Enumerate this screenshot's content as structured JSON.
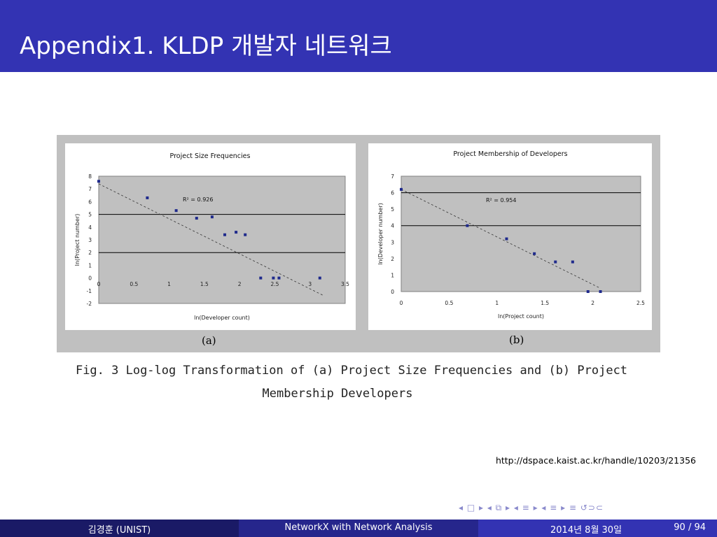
{
  "slide": {
    "title": "Appendix1. KLDP 개발자 네트워크",
    "caption_line1": "Fig. 3 Log-log Transformation of (a) Project Size Frequencies and (b) Project",
    "caption_line2": "Membership Developers",
    "url": "http://dspace.kaist.ac.kr/handle/10203/21356",
    "nav_symbols": "◂ □ ▸  ◂ ⧉ ▸  ◂ ≡ ▸  ◂ ≡ ▸   ≡   ↺⊃⊂"
  },
  "footer": {
    "author": "김경훈 (UNIST)",
    "talk": "NetworkX with Network Analysis",
    "date": "2014년 8월 30일",
    "page": "90 / 94"
  },
  "colors": {
    "title_bar": "#3333b3",
    "plot_bg": "#c0c0c0",
    "marker": "#1f2a8c"
  },
  "chart_data": [
    {
      "type": "scatter",
      "panel_label": "(a)",
      "title": "Project Size Frequencies",
      "xlabel": "ln(Developer count)",
      "ylabel": "ln(Project number)",
      "xlim": [
        0,
        3.5
      ],
      "ylim": [
        -2,
        8
      ],
      "x_ticks": [
        "0",
        "0.5",
        "1",
        "1.5",
        "2",
        "2.5",
        "3",
        "3.5"
      ],
      "y_ticks": [
        "8",
        "7",
        "6",
        "5",
        "4",
        "3",
        "2",
        "1",
        "0",
        "-1",
        "-2"
      ],
      "hlines": [
        5,
        2
      ],
      "r2_label": "R² = 0.926",
      "trendline": {
        "x": [
          0,
          3.2
        ],
        "y": [
          7.4,
          -1.4
        ]
      },
      "points": [
        {
          "x": 0.0,
          "y": 7.6
        },
        {
          "x": 0.69,
          "y": 6.3
        },
        {
          "x": 1.1,
          "y": 5.3
        },
        {
          "x": 1.39,
          "y": 4.7
        },
        {
          "x": 1.61,
          "y": 4.8
        },
        {
          "x": 1.79,
          "y": 3.4
        },
        {
          "x": 1.95,
          "y": 3.6
        },
        {
          "x": 2.08,
          "y": 3.4
        },
        {
          "x": 2.3,
          "y": 0.0
        },
        {
          "x": 2.48,
          "y": 0.0
        },
        {
          "x": 2.56,
          "y": 0.0
        },
        {
          "x": 3.14,
          "y": 0.0
        }
      ]
    },
    {
      "type": "scatter",
      "panel_label": "(b)",
      "title": "Project Membership of Developers",
      "xlabel": "ln(Project count)",
      "ylabel": "ln(Developer number)",
      "xlim": [
        0,
        2.5
      ],
      "ylim": [
        0,
        7
      ],
      "x_ticks": [
        "0",
        "0.5",
        "1",
        "1.5",
        "2",
        "2.5"
      ],
      "y_ticks": [
        "7",
        "6",
        "5",
        "4",
        "3",
        "2",
        "1",
        "0"
      ],
      "hlines": [
        6,
        4
      ],
      "r2_label": "R² = 0.954",
      "trendline": {
        "x": [
          0,
          2.08
        ],
        "y": [
          6.2,
          0.2
        ]
      },
      "points": [
        {
          "x": 0.0,
          "y": 6.2
        },
        {
          "x": 0.69,
          "y": 4.0
        },
        {
          "x": 1.1,
          "y": 3.2
        },
        {
          "x": 1.39,
          "y": 2.3
        },
        {
          "x": 1.61,
          "y": 1.8
        },
        {
          "x": 1.79,
          "y": 1.8
        },
        {
          "x": 1.95,
          "y": 0.0
        },
        {
          "x": 2.08,
          "y": 0.0
        }
      ]
    }
  ]
}
